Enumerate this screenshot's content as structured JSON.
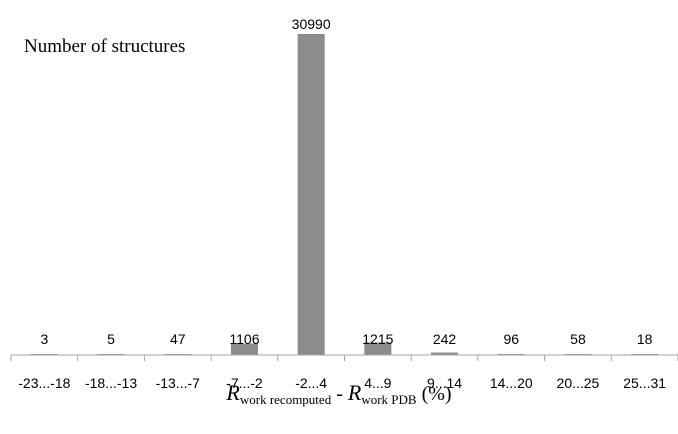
{
  "chart_data": {
    "type": "bar",
    "title": "",
    "ylabel": "Number of structures",
    "xlabel": {
      "symbol_1": "R",
      "sub_1": "work  recomputed",
      "separator": " - ",
      "symbol_2": "R",
      "sub_2": "work  PDB",
      "suffix": " (%)"
    },
    "categories": [
      "-23...-18",
      "-18...-13",
      "-13...-7",
      "-7...-2",
      "-2...4",
      "4...9",
      "9...14",
      "14...20",
      "20...25",
      "25...31"
    ],
    "values": [
      3,
      5,
      47,
      1106,
      30990,
      1215,
      242,
      96,
      58,
      18
    ],
    "data_labels": [
      "3",
      "5",
      "47",
      "1106",
      "30990",
      "1215",
      "242",
      "96",
      "58",
      "18"
    ],
    "ylim": [
      0,
      30990
    ],
    "grid": false,
    "legend": "none",
    "bar_color": "#8c8c8c",
    "axis_color": "#a6a6a6"
  }
}
